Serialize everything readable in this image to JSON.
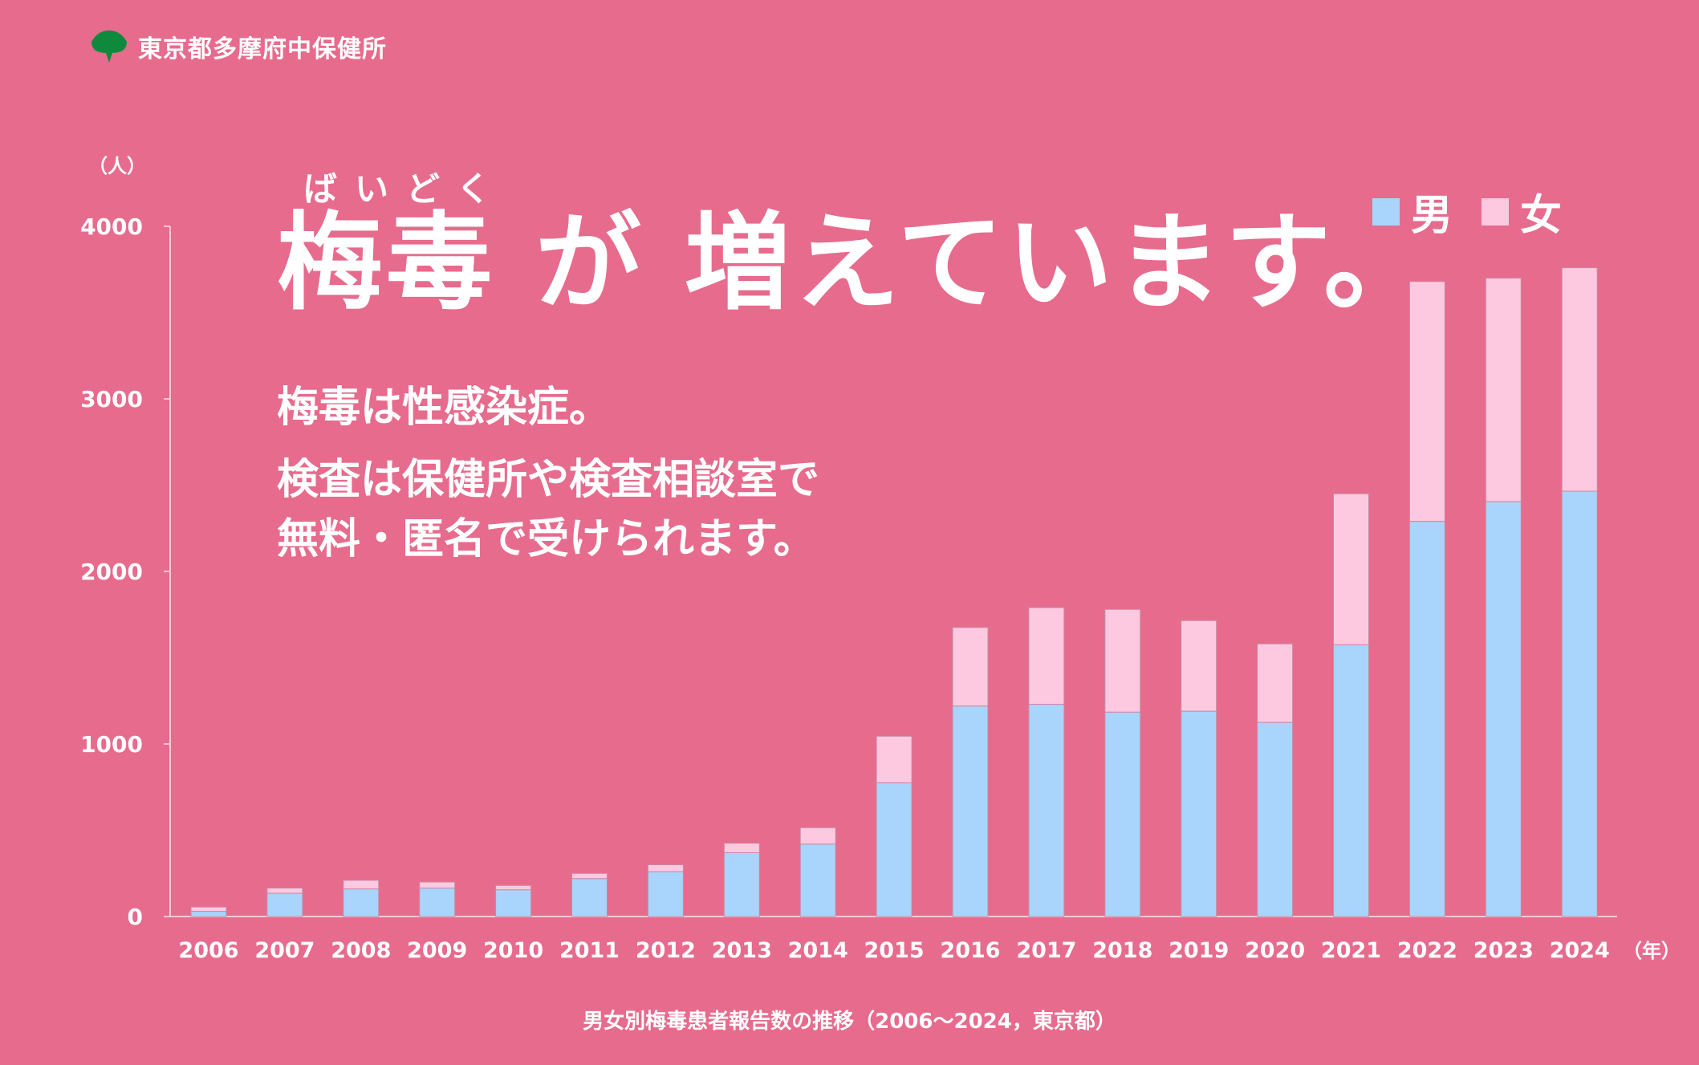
{
  "org": {
    "name": "東京都多摩府中保健所",
    "logo_icon": "ginkgo-leaf-icon",
    "logo_color": "#0f8a3c"
  },
  "headline": {
    "ruby": "ばいどく",
    "text": "梅毒 が 増えています。"
  },
  "body": {
    "line1": "梅毒は性感染症。",
    "line2": "検査は保健所や検査相談室で",
    "line3": "無料・匿名で受けられます。"
  },
  "colors": {
    "background": "#e76b8d",
    "male": "#a9d4fb",
    "female": "#fcc9e0"
  },
  "chart_data": {
    "type": "bar",
    "stacked": true,
    "categories": [
      "2006",
      "2007",
      "2008",
      "2009",
      "2010",
      "2011",
      "2012",
      "2013",
      "2014",
      "2015",
      "2016",
      "2017",
      "2018",
      "2019",
      "2020",
      "2021",
      "2022",
      "2023",
      "2024"
    ],
    "series": [
      {
        "name": "男",
        "color": "#a9d4fb",
        "values": [
          30,
          135,
          160,
          165,
          155,
          220,
          260,
          370,
          420,
          775,
          1220,
          1230,
          1185,
          1190,
          1125,
          1575,
          2290,
          2405,
          2465
        ]
      },
      {
        "name": "女",
        "color": "#fcc9e0",
        "values": [
          25,
          30,
          50,
          35,
          25,
          30,
          40,
          55,
          95,
          270,
          455,
          560,
          595,
          525,
          455,
          875,
          1390,
          1295,
          1295
        ]
      }
    ],
    "ylabel": "（人）",
    "xlabel": "（年）",
    "ylim": [
      0,
      4000
    ],
    "yticks": [
      "0",
      "1000",
      "2000",
      "3000",
      "4000"
    ],
    "caption": "男女別梅毒患者報告数の推移（2006～2024，東京都）",
    "grid": false,
    "legend_position": "top-right"
  }
}
